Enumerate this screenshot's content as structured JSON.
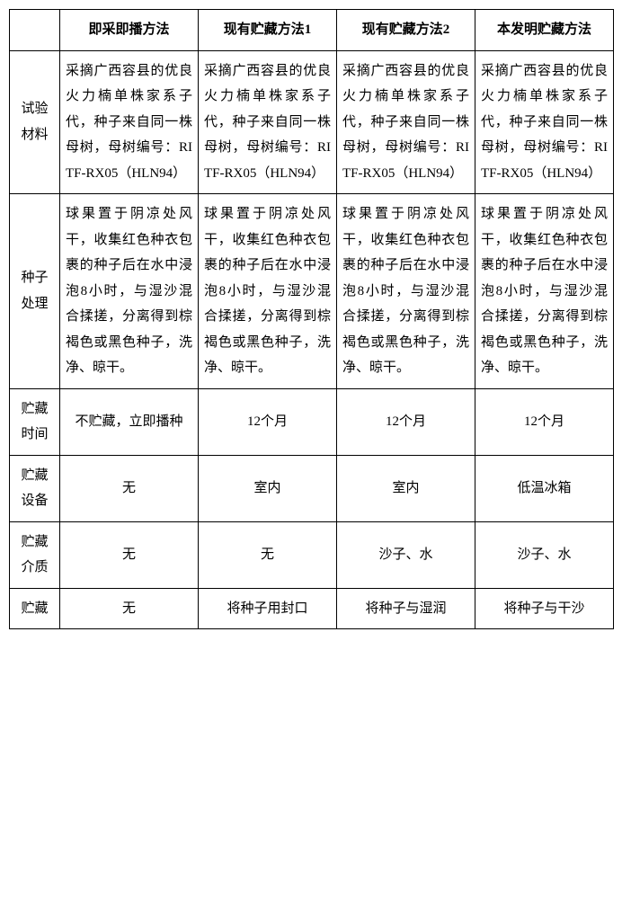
{
  "table": {
    "headers": {
      "blank": "",
      "col1": "即采即播方法",
      "col2": "现有贮藏方法1",
      "col3": "现有贮藏方法2",
      "col4": "本发明贮藏方法"
    },
    "rows": {
      "material": {
        "label": "试验材料",
        "c1": "采摘广西容县的优良火力楠单株家系子代，种子来自同一株母树，母树编号：RITF-RX05（HLN94）",
        "c2": "采摘广西容县的优良火力楠单株家系子代，种子来自同一株母树，母树编号：RITF-RX05（HLN94）",
        "c3": "采摘广西容县的优良火力楠单株家系子代，种子来自同一株母树，母树编号：RITF-RX05（HLN94）",
        "c4": "采摘广西容县的优良火力楠单株家系子代，种子来自同一株母树，母树编号：RITF-RX05（HLN94）"
      },
      "seed": {
        "label": "种子处理",
        "c1": "球果置于阴凉处风干，收集红色种衣包裹的种子后在水中浸泡8小时，与湿沙混合揉搓，分离得到棕褐色或黑色种子，洗净、晾干。",
        "c2": "球果置于阴凉处风干，收集红色种衣包裹的种子后在水中浸泡8小时，与湿沙混合揉搓，分离得到棕褐色或黑色种子，洗净、晾干。",
        "c3": "球果置于阴凉处风干，收集红色种衣包裹的种子后在水中浸泡8小时，与湿沙混合揉搓，分离得到棕褐色或黑色种子，洗净、晾干。",
        "c4": "球果置于阴凉处风干，收集红色种衣包裹的种子后在水中浸泡8小时，与湿沙混合揉搓，分离得到棕褐色或黑色种子，洗净、晾干。"
      },
      "time": {
        "label": "贮藏时间",
        "c1": "不贮藏，立即播种",
        "c2": "12个月",
        "c3": "12个月",
        "c4": "12个月"
      },
      "device": {
        "label": "贮藏设备",
        "c1": "无",
        "c2": "室内",
        "c3": "室内",
        "c4": "低温冰箱"
      },
      "medium": {
        "label": "贮藏介质",
        "c1": "无",
        "c2": "无",
        "c3": "沙子、水",
        "c4": "沙子、水"
      },
      "storage": {
        "label": "贮藏",
        "c1": "无",
        "c2": "将种子用封口",
        "c3": "将种子与湿润",
        "c4": "将种子与干沙"
      }
    }
  }
}
